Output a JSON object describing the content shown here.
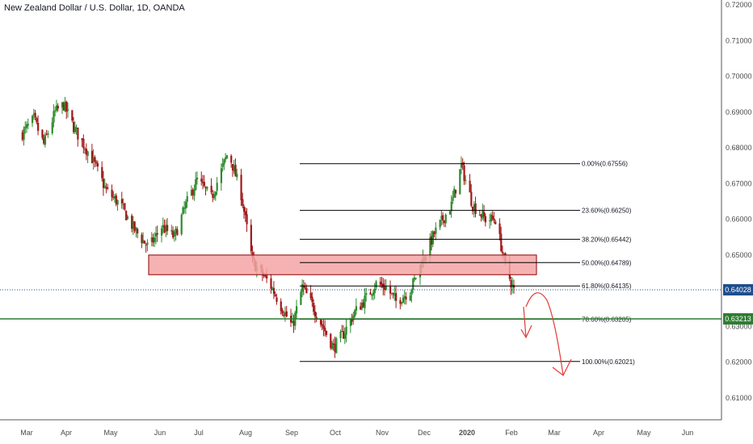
{
  "title": "New Zealand Dollar / U.S. Dollar, 1D, OANDA",
  "colors": {
    "up": "#26a69a",
    "up_body": "#2e8b2e",
    "down": "#a01818",
    "zone_fill": "#f4a5a5",
    "zone_stroke": "#8b0000",
    "current_line": "#1e4e8c",
    "support_line": "#2e7d32",
    "arrow": "#e53935",
    "axis_text": "#4a4a4a"
  },
  "price_tags": [
    {
      "value": "0.64028",
      "color": "#1e4e8c"
    },
    {
      "value": "0.63213",
      "color": "#2e7d32"
    }
  ],
  "chart_data": {
    "type": "candlestick",
    "symbol": "NZDUSD",
    "title": "New Zealand Dollar / U.S. Dollar, 1D, OANDA",
    "ylim": [
      0.608,
      0.721
    ],
    "y_ticks": [
      "0.72000",
      "0.71000",
      "0.70000",
      "0.69000",
      "0.68000",
      "0.67000",
      "0.66000",
      "0.65000",
      "0.64000",
      "0.63000",
      "0.62000",
      "0.61000"
    ],
    "x_ticks": [
      "Mar",
      "Apr",
      "May",
      "Jun",
      "Jul",
      "Aug",
      "Sep",
      "Oct",
      "Nov",
      "Dec",
      "2020",
      "Feb",
      "Mar",
      "Apr",
      "May",
      "Jun"
    ],
    "price_path": [
      [
        "2019-02-25",
        0.684
      ],
      [
        "2019-03-05",
        0.688
      ],
      [
        "2019-03-12",
        0.681
      ],
      [
        "2019-03-20",
        0.69
      ],
      [
        "2019-03-26",
        0.692
      ],
      [
        "2019-04-03",
        0.685
      ],
      [
        "2019-04-15",
        0.677
      ],
      [
        "2019-04-25",
        0.668
      ],
      [
        "2019-05-05",
        0.664
      ],
      [
        "2019-05-15",
        0.657
      ],
      [
        "2019-05-25",
        0.652
      ],
      [
        "2019-06-03",
        0.658
      ],
      [
        "2019-06-12",
        0.655
      ],
      [
        "2019-06-20",
        0.664
      ],
      [
        "2019-06-28",
        0.671
      ],
      [
        "2019-07-08",
        0.666
      ],
      [
        "2019-07-20",
        0.679
      ],
      [
        "2019-07-29",
        0.667
      ],
      [
        "2019-08-06",
        0.648
      ],
      [
        "2019-08-18",
        0.642
      ],
      [
        "2019-08-27",
        0.635
      ],
      [
        "2019-09-03",
        0.63
      ],
      [
        "2019-09-10",
        0.641
      ],
      [
        "2019-09-17",
        0.636
      ],
      [
        "2019-09-27",
        0.628
      ],
      [
        "2019-10-02",
        0.624
      ],
      [
        "2019-10-09",
        0.628
      ],
      [
        "2019-10-17",
        0.634
      ],
      [
        "2019-10-25",
        0.638
      ],
      [
        "2019-11-01",
        0.642
      ],
      [
        "2019-11-08",
        0.641
      ],
      [
        "2019-11-15",
        0.637
      ],
      [
        "2019-11-25",
        0.64
      ],
      [
        "2019-12-02",
        0.647
      ],
      [
        "2019-12-12",
        0.656
      ],
      [
        "2019-12-24",
        0.664
      ],
      [
        "2019-12-31",
        0.675
      ],
      [
        "2020-01-08",
        0.664
      ],
      [
        "2020-01-17",
        0.66
      ],
      [
        "2020-01-24",
        0.66
      ],
      [
        "2020-01-31",
        0.647
      ],
      [
        "2020-02-06",
        0.64
      ]
    ],
    "fibonacci": [
      {
        "label": "0.00%(0.67556)",
        "value": 0.67556
      },
      {
        "label": "23.60%(0.66250)",
        "value": 0.6625
      },
      {
        "label": "38.20%(0.65442)",
        "value": 0.65442
      },
      {
        "label": "50.00%(0.64789)",
        "value": 0.64789
      },
      {
        "label": "61.80%(0.64135)",
        "value": 0.64135
      },
      {
        "label": "78.60%(0.63205)",
        "value": 0.63205
      },
      {
        "label": "100.00%(0.62021)",
        "value": 0.62021
      }
    ],
    "zone": {
      "from": 0.6445,
      "to": 0.65
    },
    "current_price": 0.64028,
    "support_price": 0.63213
  }
}
